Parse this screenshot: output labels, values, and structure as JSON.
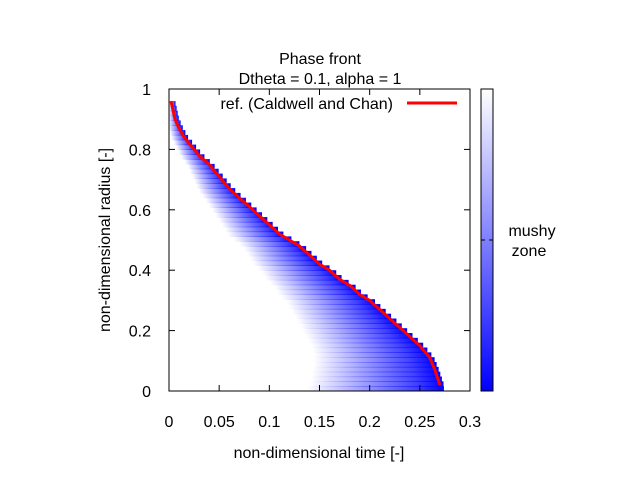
{
  "chart_data": {
    "type": "line",
    "title": "Phase front",
    "subtitle": "Dtheta = 0.1, alpha = 1",
    "xlabel": "non-dimensional time [-]",
    "ylabel": "non-dimensional radius [-]",
    "xlim": [
      0,
      0.3
    ],
    "ylim": [
      0,
      1
    ],
    "xticks": [
      "0",
      "0.05",
      "0.1",
      "0.15",
      "0.2",
      "0.25",
      "0.3"
    ],
    "yticks": [
      "0",
      "0.2",
      "0.4",
      "0.6",
      "0.8",
      "1"
    ],
    "legend_position": "top-right",
    "grid": false,
    "colors": {
      "reference_line": "#ff0000",
      "mushy_zone": "#0000ff",
      "mushy_zone_fade": "#ffffff"
    },
    "series": [
      {
        "name": "ref. (Caldwell and Chan)",
        "x": [
          0.002,
          0.004,
          0.006,
          0.01,
          0.015,
          0.02,
          0.03,
          0.04,
          0.05,
          0.06,
          0.07,
          0.08,
          0.09,
          0.1,
          0.11,
          0.12,
          0.13,
          0.14,
          0.15,
          0.16,
          0.17,
          0.18,
          0.19,
          0.2,
          0.21,
          0.22,
          0.23,
          0.24,
          0.25,
          0.26,
          0.265,
          0.27
        ],
        "y": [
          0.96,
          0.93,
          0.9,
          0.87,
          0.84,
          0.82,
          0.78,
          0.75,
          0.71,
          0.67,
          0.64,
          0.61,
          0.58,
          0.55,
          0.52,
          0.5,
          0.48,
          0.45,
          0.42,
          0.4,
          0.37,
          0.35,
          0.32,
          0.3,
          0.27,
          0.24,
          0.21,
          0.18,
          0.15,
          0.11,
          0.07,
          0.02
        ]
      }
    ],
    "colorbar": {
      "label_line1": "mushy",
      "label_line2": "zone"
    }
  }
}
